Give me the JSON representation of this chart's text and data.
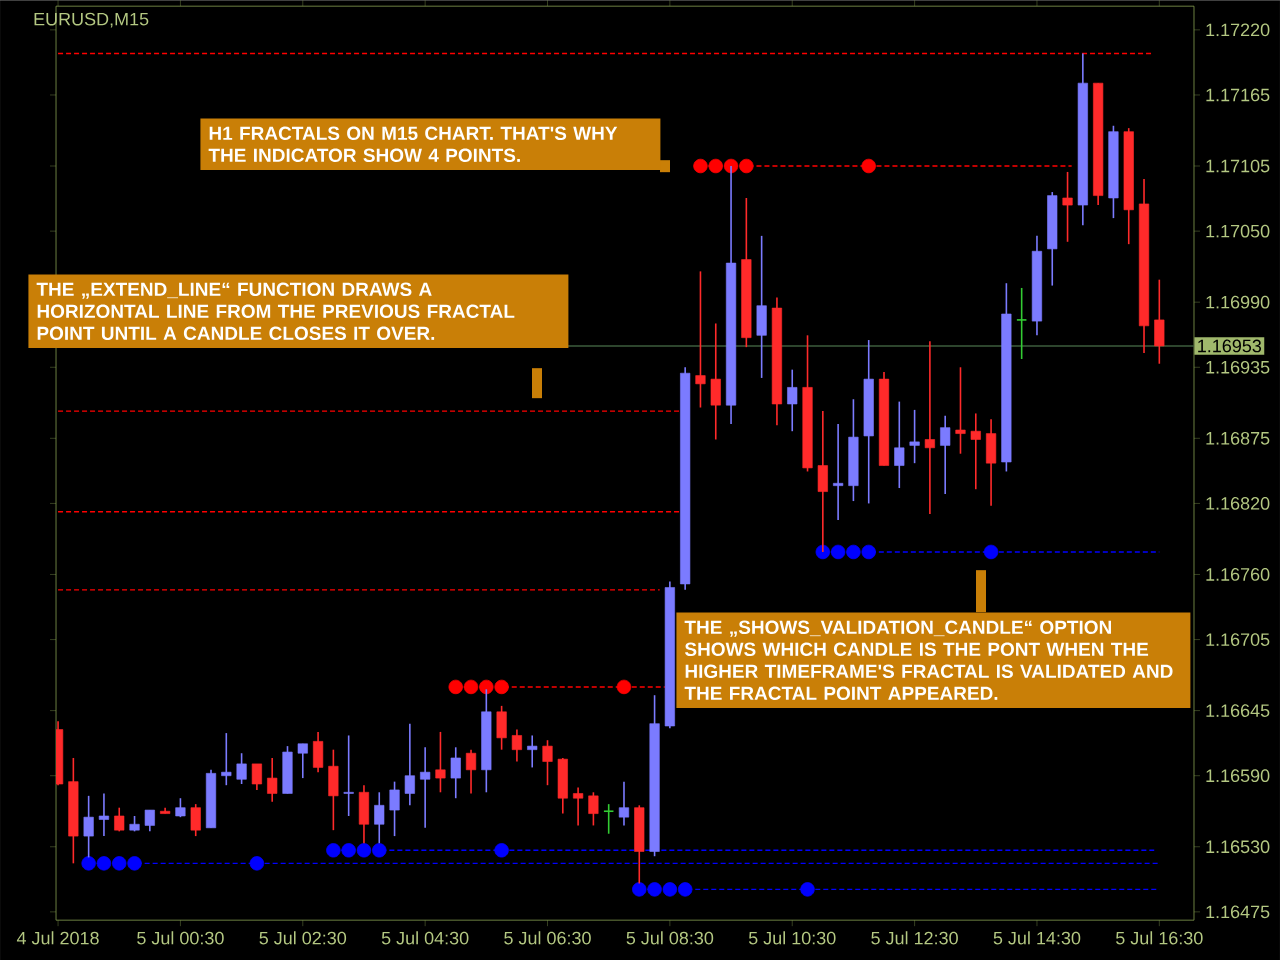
{
  "chart_data": {
    "type": "candlestick",
    "title": "EURUSD,M15",
    "annotations": [
      "H1 FRACTALS ON M15 CHART. THAT'S WHY THE INDICATOR SHOW 4 POINTS.",
      "THE „EXTEND_LINE“ FUNCTION DRAWS A HORIZONTAL LINE FROM THE PREVIOUS FRACTAL POINT UNTIL A CANDLE CLOSES IT OVER.",
      "THE „SHOWS_VALIDATION_CANDLE“ OPTION SHOWS WHICH CANDLE IS THE PONT WHEN THE HIGHER TIMEFRAME'S FRACTAL IS VALIDATED AND THE FRACTAL POINT APPEARED."
    ],
    "x": [
      "2018-07-04T22:30",
      "2018-07-04T22:45",
      "2018-07-04T23:00",
      "2018-07-04T23:15",
      "2018-07-04T23:30",
      "2018-07-04T23:45",
      "2018-07-05T00:00",
      "2018-07-05T00:15",
      "2018-07-05T00:30",
      "2018-07-05T00:45",
      "2018-07-05T01:00",
      "2018-07-05T01:15",
      "2018-07-05T01:30",
      "2018-07-05T01:45",
      "2018-07-05T02:00",
      "2018-07-05T02:15",
      "2018-07-05T02:30",
      "2018-07-05T02:45",
      "2018-07-05T03:00",
      "2018-07-05T03:15",
      "2018-07-05T03:30",
      "2018-07-05T03:45",
      "2018-07-05T04:00",
      "2018-07-05T04:15",
      "2018-07-05T04:30",
      "2018-07-05T04:45",
      "2018-07-05T05:00",
      "2018-07-05T05:15",
      "2018-07-05T05:30",
      "2018-07-05T05:45",
      "2018-07-05T06:00",
      "2018-07-05T06:15",
      "2018-07-05T06:30",
      "2018-07-05T06:45",
      "2018-07-05T07:00",
      "2018-07-05T07:15",
      "2018-07-05T07:30",
      "2018-07-05T07:45",
      "2018-07-05T08:00",
      "2018-07-05T08:15",
      "2018-07-05T08:30",
      "2018-07-05T08:45",
      "2018-07-05T09:00",
      "2018-07-05T09:15",
      "2018-07-05T09:30",
      "2018-07-05T09:45",
      "2018-07-05T10:00",
      "2018-07-05T10:15",
      "2018-07-05T10:30",
      "2018-07-05T10:45",
      "2018-07-05T11:00",
      "2018-07-05T11:15",
      "2018-07-05T11:30",
      "2018-07-05T11:45",
      "2018-07-05T12:00",
      "2018-07-05T12:15",
      "2018-07-05T12:30",
      "2018-07-05T12:45",
      "2018-07-05T13:00",
      "2018-07-05T13:15",
      "2018-07-05T13:30",
      "2018-07-05T13:45",
      "2018-07-05T14:00",
      "2018-07-05T14:15",
      "2018-07-05T14:30",
      "2018-07-05T14:45",
      "2018-07-05T15:00",
      "2018-07-05T15:15",
      "2018-07-05T15:30",
      "2018-07-05T15:45",
      "2018-07-05T16:00",
      "2018-07-05T16:15",
      "2018-07-05T16:30"
    ],
    "ohlc": [
      [
        1.16629,
        1.16636,
        1.16582,
        1.16583
      ],
      [
        1.16585,
        1.16605,
        1.16516,
        1.16539
      ],
      [
        1.16539,
        1.16573,
        1.16521,
        1.16555
      ],
      [
        1.16553,
        1.16575,
        1.16539,
        1.16556
      ],
      [
        1.16556,
        1.16563,
        1.16543,
        1.16544
      ],
      [
        1.16544,
        1.16556,
        1.16543,
        1.16549
      ],
      [
        1.16548,
        1.16561,
        1.16543,
        1.16561
      ],
      [
        1.1656,
        1.16563,
        1.16558,
        1.16558
      ],
      [
        1.16556,
        1.16571,
        1.16555,
        1.16563
      ],
      [
        1.16563,
        1.16566,
        1.16539,
        1.16544
      ],
      [
        1.16546,
        1.16595,
        1.16546,
        1.16592
      ],
      [
        1.1659,
        1.16626,
        1.16582,
        1.16593
      ],
      [
        1.16587,
        1.16609,
        1.16583,
        1.166
      ],
      [
        1.166,
        1.166,
        1.16578,
        1.16583
      ],
      [
        1.16588,
        1.16605,
        1.16568,
        1.16575
      ],
      [
        1.16575,
        1.16615,
        1.16575,
        1.1661
      ],
      [
        1.16609,
        1.16617,
        1.16588,
        1.16617
      ],
      [
        1.16619,
        1.16627,
        1.16593,
        1.16597
      ],
      [
        1.16598,
        1.16612,
        1.16544,
        1.16573
      ],
      [
        1.16575,
        1.16624,
        1.16556,
        1.16576
      ],
      [
        1.16576,
        1.16582,
        1.16533,
        1.16549
      ],
      [
        1.16549,
        1.16576,
        1.16533,
        1.16565
      ],
      [
        1.16561,
        1.16585,
        1.16539,
        1.16578
      ],
      [
        1.16575,
        1.16634,
        1.16565,
        1.1659
      ],
      [
        1.16587,
        1.16614,
        1.16546,
        1.16593
      ],
      [
        1.16595,
        1.16627,
        1.16576,
        1.16588
      ],
      [
        1.16588,
        1.16614,
        1.16571,
        1.16605
      ],
      [
        1.16609,
        1.16612,
        1.16575,
        1.16595
      ],
      [
        1.16595,
        1.16663,
        1.16576,
        1.16644
      ],
      [
        1.16644,
        1.16649,
        1.16612,
        1.16622
      ],
      [
        1.16624,
        1.16629,
        1.16602,
        1.16612
      ],
      [
        1.16612,
        1.16624,
        1.16597,
        1.16615
      ],
      [
        1.16615,
        1.1662,
        1.16582,
        1.16602
      ],
      [
        1.16604,
        1.16605,
        1.16558,
        1.16571
      ],
      [
        1.16575,
        1.1658,
        1.16548,
        1.16571
      ],
      [
        1.16573,
        1.16576,
        1.16548,
        1.16558
      ],
      [
        1.1656,
        1.16566,
        1.16541,
        1.1656
      ],
      [
        1.16555,
        1.16585,
        1.16548,
        1.16563
      ],
      [
        1.16563,
        1.16565,
        1.16499,
        1.16526
      ],
      [
        1.16526,
        1.16658,
        1.16522,
        1.16634
      ],
      [
        1.16632,
        1.16754,
        1.1663,
        1.16749
      ],
      [
        1.16752,
        1.16935,
        1.16747,
        1.1693
      ],
      [
        1.16928,
        1.17016,
        1.16901,
        1.16921
      ],
      [
        1.16925,
        1.16972,
        1.16874,
        1.16903
      ],
      [
        1.16903,
        1.17105,
        1.16887,
        1.17023
      ],
      [
        1.17026,
        1.17078,
        1.16952,
        1.1696
      ],
      [
        1.16962,
        1.17046,
        1.16926,
        1.16987
      ],
      [
        1.16985,
        1.16994,
        1.16886,
        1.16904
      ],
      [
        1.16904,
        1.16933,
        1.16881,
        1.16918
      ],
      [
        1.16918,
        1.16962,
        1.16847,
        1.1685
      ],
      [
        1.16852,
        1.16898,
        1.16779,
        1.1683
      ],
      [
        1.16835,
        1.16887,
        1.16806,
        1.16837
      ],
      [
        1.16835,
        1.16908,
        1.16822,
        1.16876
      ],
      [
        1.16877,
        1.16958,
        1.1682,
        1.16925
      ],
      [
        1.16925,
        1.16931,
        1.16852,
        1.16852
      ],
      [
        1.16852,
        1.16906,
        1.16833,
        1.16867
      ],
      [
        1.16869,
        1.16899,
        1.16854,
        1.16872
      ],
      [
        1.16874,
        1.16957,
        1.16811,
        1.16867
      ],
      [
        1.16869,
        1.16894,
        1.16828,
        1.16884
      ],
      [
        1.16882,
        1.16935,
        1.16862,
        1.16879
      ],
      [
        1.16881,
        1.16896,
        1.16832,
        1.16874
      ],
      [
        1.16879,
        1.16891,
        1.16818,
        1.16854
      ],
      [
        1.16855,
        1.17006,
        1.16847,
        1.1698
      ],
      [
        1.16975,
        1.17002,
        1.16942,
        1.16975
      ],
      [
        1.16974,
        1.17046,
        1.16962,
        1.17033
      ],
      [
        1.17035,
        1.17083,
        1.17004,
        1.1708
      ],
      [
        1.17078,
        1.171,
        1.17041,
        1.17072
      ],
      [
        1.17072,
        1.172,
        1.17055,
        1.17175
      ],
      [
        1.17175,
        1.17175,
        1.17072,
        1.1708
      ],
      [
        1.17078,
        1.17139,
        1.17061,
        1.17134
      ],
      [
        1.17134,
        1.17137,
        1.17039,
        1.17068
      ],
      [
        1.17073,
        1.17094,
        1.16947,
        1.1697
      ],
      [
        1.16975,
        1.17009,
        1.16938,
        1.16953
      ]
    ],
    "colors": [
      "#ff2a2a",
      "#ff2a2a",
      "#7b7bff",
      "#7b7bff",
      "#ff2a2a",
      "#7b7bff",
      "#7b7bff",
      "#ff2a2a",
      "#7b7bff",
      "#ff2a2a",
      "#7b7bff",
      "#7b7bff",
      "#7b7bff",
      "#ff2a2a",
      "#ff2a2a",
      "#7b7bff",
      "#7b7bff",
      "#ff2a2a",
      "#ff2a2a",
      "#7b7bff",
      "#ff2a2a",
      "#7b7bff",
      "#7b7bff",
      "#7b7bff",
      "#7b7bff",
      "#ff2a2a",
      "#7b7bff",
      "#ff2a2a",
      "#7b7bff",
      "#ff2a2a",
      "#ff2a2a",
      "#7b7bff",
      "#ff2a2a",
      "#ff2a2a",
      "#ff2a2a",
      "#ff2a2a",
      "#33cc33",
      "#7b7bff",
      "#ff2a2a",
      "#7b7bff",
      "#7b7bff",
      "#7b7bff",
      "#ff2a2a",
      "#ff2a2a",
      "#7b7bff",
      "#ff2a2a",
      "#7b7bff",
      "#ff2a2a",
      "#7b7bff",
      "#ff2a2a",
      "#ff2a2a",
      "#7b7bff",
      "#7b7bff",
      "#7b7bff",
      "#ff2a2a",
      "#7b7bff",
      "#7b7bff",
      "#ff2a2a",
      "#7b7bff",
      "#ff2a2a",
      "#ff2a2a",
      "#ff2a2a",
      "#7b7bff",
      "#33cc33",
      "#7b7bff",
      "#7b7bff",
      "#ff2a2a",
      "#7b7bff",
      "#ff2a2a",
      "#7b7bff",
      "#ff2a2a",
      "#ff2a2a",
      "#ff2a2a"
    ],
    "series": [
      {
        "type": "line",
        "x": [
          "2018-07-04T22:30",
          "2018-07-05T16:22"
        ],
        "values": [
          1.172,
          1.172
        ],
        "color": "#ff0000",
        "line_style": "dashed",
        "marker": "none"
      },
      {
        "type": "line",
        "x": [
          "2018-07-05T09:00",
          "2018-07-05T15:04"
        ],
        "values": [
          1.17105,
          1.17105
        ],
        "color": "#ff0000",
        "line_style": "dashed",
        "marker": "none"
      },
      {
        "type": "line",
        "x": [
          "2018-07-04T22:30",
          "2018-07-05T08:39"
        ],
        "values": [
          1.16898,
          1.16898
        ],
        "color": "#ff0000",
        "line_style": "dashed",
        "marker": "none"
      },
      {
        "type": "line",
        "x": [
          "2018-07-04T22:30",
          "2018-07-05T08:39"
        ],
        "values": [
          1.16813,
          1.16813
        ],
        "color": "#ff0000",
        "line_style": "dashed",
        "marker": "none"
      },
      {
        "type": "line",
        "x": [
          "2018-07-04T22:30",
          "2018-07-05T08:20"
        ],
        "values": [
          1.16747,
          1.16747
        ],
        "color": "#ff0000",
        "line_style": "dashed",
        "marker": "none"
      },
      {
        "type": "line",
        "x": [
          "2018-07-05T05:00",
          "2018-07-05T08:25"
        ],
        "values": [
          1.16665,
          1.16665
        ],
        "color": "#ff0000",
        "line_style": "dashed",
        "marker": "none"
      },
      {
        "type": "line",
        "x": [
          "2018-07-05T11:00",
          "2018-07-05T16:30"
        ],
        "values": [
          1.16779,
          1.16779
        ],
        "color": "#0000ff",
        "line_style": "dashed",
        "marker": "none"
      },
      {
        "type": "line",
        "x": [
          "2018-07-05T03:00",
          "2018-07-05T16:25"
        ],
        "values": [
          1.16527,
          1.16527
        ],
        "color": "#0000ff",
        "line_style": "dashed",
        "marker": "none"
      },
      {
        "type": "line",
        "x": [
          "2018-07-04T23:00",
          "2018-07-05T16:30"
        ],
        "values": [
          1.16516,
          1.16516
        ],
        "color": "#0000ff",
        "line_style": "dashed",
        "marker": "none"
      },
      {
        "type": "line",
        "x": [
          "2018-07-05T08:00",
          "2018-07-05T16:30"
        ],
        "values": [
          1.16494,
          1.16494
        ],
        "color": "#0000ff",
        "line_style": "dashed",
        "marker": "none"
      },
      {
        "type": "scatter",
        "x": [
          "2018-07-05T09:00",
          "2018-07-05T09:15",
          "2018-07-05T09:30",
          "2018-07-05T09:45",
          "2018-07-05T11:45",
          "2018-07-05T05:00",
          "2018-07-05T05:15",
          "2018-07-05T05:30",
          "2018-07-05T05:45",
          "2018-07-05T07:45"
        ],
        "values": [
          1.17105,
          1.17105,
          1.17105,
          1.17105,
          1.17105,
          1.16665,
          1.16665,
          1.16665,
          1.16665,
          1.16665
        ],
        "color": "#ff0000",
        "marker": "circle"
      },
      {
        "type": "scatter",
        "x": [
          "2018-07-05T11:00",
          "2018-07-05T11:15",
          "2018-07-05T11:30",
          "2018-07-05T11:45",
          "2018-07-05T13:45",
          "2018-07-05T03:00",
          "2018-07-05T03:15",
          "2018-07-05T03:30",
          "2018-07-05T03:45",
          "2018-07-05T05:45",
          "2018-07-04T23:00",
          "2018-07-04T23:15",
          "2018-07-04T23:30",
          "2018-07-04T23:45",
          "2018-07-05T01:45",
          "2018-07-05T08:00",
          "2018-07-05T08:15",
          "2018-07-05T08:30",
          "2018-07-05T08:45",
          "2018-07-05T10:45"
        ],
        "values": [
          1.16779,
          1.16779,
          1.16779,
          1.16779,
          1.16779,
          1.16527,
          1.16527,
          1.16527,
          1.16527,
          1.16527,
          1.16516,
          1.16516,
          1.16516,
          1.16516,
          1.16516,
          1.16494,
          1.16494,
          1.16494,
          1.16494,
          1.16494
        ],
        "color": "#0000ff",
        "marker": "circle"
      }
    ],
    "ref_lines": [
      {
        "axis": "y",
        "value": 1.16953,
        "label": "1.16953",
        "color": "#3c5c3c"
      }
    ],
    "xlim": [
      "2018-07-04T22:28",
      "2018-07-05T17:04"
    ],
    "xticks": [
      {
        "value": "2018-07-04T22:30",
        "label": "4 Jul 2018"
      },
      {
        "value": "2018-07-05T00:30",
        "label": "5 Jul 00:30"
      },
      {
        "value": "2018-07-05T02:30",
        "label": "5 Jul 02:30"
      },
      {
        "value": "2018-07-05T04:30",
        "label": "5 Jul 04:30"
      },
      {
        "value": "2018-07-05T06:30",
        "label": "5 Jul 06:30"
      },
      {
        "value": "2018-07-05T08:30",
        "label": "5 Jul 08:30"
      },
      {
        "value": "2018-07-05T10:30",
        "label": "5 Jul 10:30"
      },
      {
        "value": "2018-07-05T12:30",
        "label": "5 Jul 12:30"
      },
      {
        "value": "2018-07-05T14:30",
        "label": "5 Jul 14:30"
      },
      {
        "value": "2018-07-05T16:30",
        "label": "5 Jul 16:30"
      }
    ],
    "ylim": [
      1.16468,
      1.1724
    ],
    "yticks": [
      {
        "value": 1.1722,
        "label": "1.17220"
      },
      1.17165,
      1.17105,
      {
        "value": 1.1705,
        "label": "1.17050"
      },
      {
        "value": 1.1699,
        "label": "1.16990"
      },
      1.16935,
      1.16875,
      {
        "value": 1.1682,
        "label": "1.16820"
      },
      {
        "value": 1.1676,
        "label": "1.16760"
      },
      1.16705,
      1.16645,
      {
        "value": 1.1659,
        "label": "1.16590"
      },
      {
        "value": 1.1653,
        "label": "1.16530"
      },
      1.16475
    ]
  }
}
